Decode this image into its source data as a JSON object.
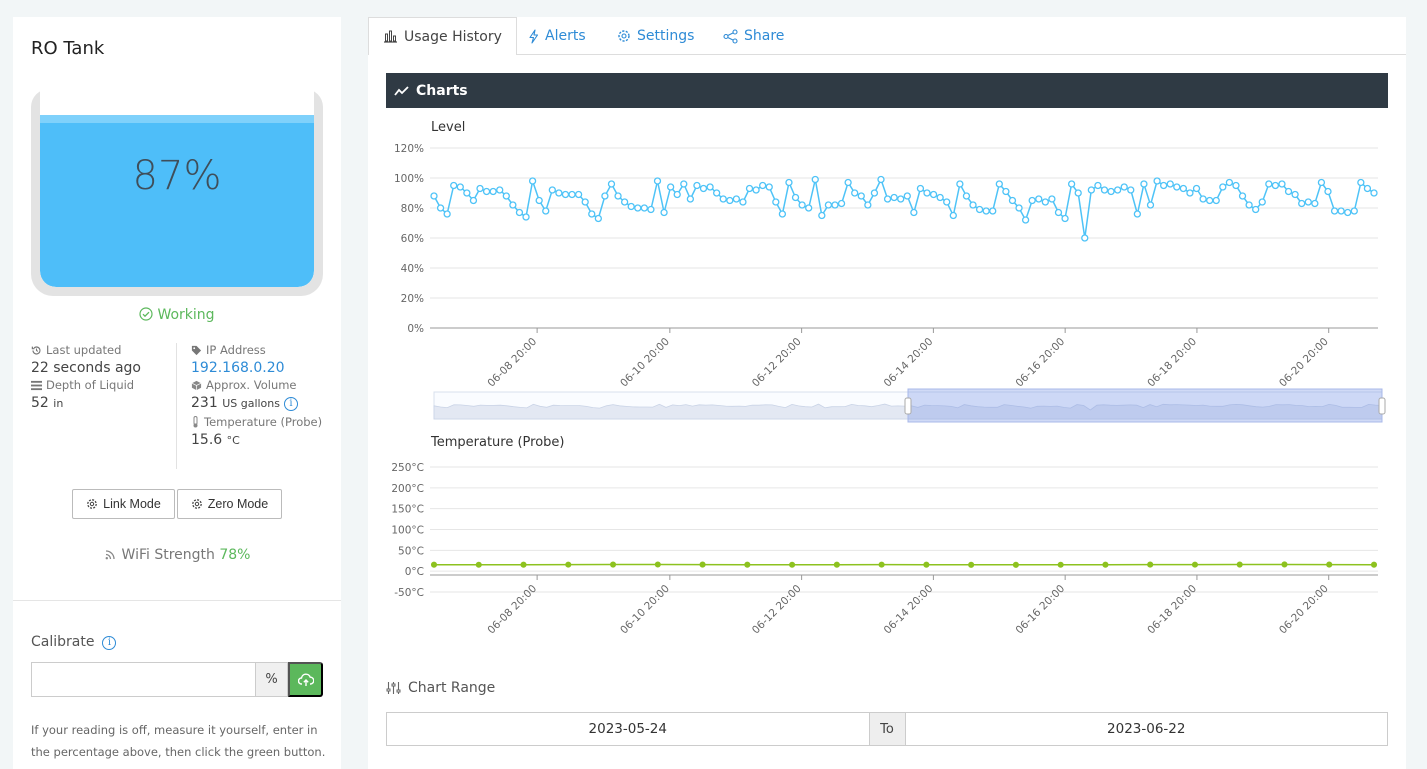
{
  "tank": {
    "title": "RO Tank",
    "level_percent": 87,
    "level_label": "87%",
    "status": "Working",
    "last_updated_label": "Last updated",
    "last_updated_value": "22 seconds ago",
    "depth_label": "Depth of Liquid",
    "depth_value": "52",
    "depth_unit": "in",
    "ip_label": "IP Address",
    "ip_value": "192.168.0.20",
    "volume_label": "Approx. Volume",
    "volume_value": "231",
    "volume_unit": "US gallons",
    "temp_label": "Temperature (Probe)",
    "temp_value": "15.6",
    "temp_unit": "°C",
    "link_mode": "Link Mode",
    "zero_mode": "Zero Mode",
    "wifi_label": "WiFi Strength",
    "wifi_value": "78%"
  },
  "calibrate": {
    "title": "Calibrate",
    "input_value": "",
    "unit": "%",
    "help": "If your reading is off, measure it yourself, enter in the percentage above, then click the green button."
  },
  "tabs": [
    {
      "label": "Usage History",
      "icon": "bar-chart-icon",
      "active": true
    },
    {
      "label": "Alerts",
      "icon": "bolt-icon",
      "active": false
    },
    {
      "label": "Settings",
      "icon": "gear-icon",
      "active": false
    },
    {
      "label": "Share",
      "icon": "share-icon",
      "active": false
    }
  ],
  "charts_header": "Charts",
  "chart_range": {
    "title": "Chart Range",
    "from": "2023-05-24",
    "to_label": "To",
    "to": "2023-06-22"
  },
  "colors": {
    "level_line": "#4ec3f7",
    "temp_line": "#8dc21f",
    "working": "#5cb85c",
    "link": "#2e8bd6"
  },
  "chart_data": [
    {
      "type": "line",
      "title": "Level",
      "ylim": [
        0,
        120
      ],
      "yticks": [
        "0%",
        "20%",
        "40%",
        "60%",
        "80%",
        "100%",
        "120%"
      ],
      "xticks": [
        "06-08 20:00",
        "06-10 20:00",
        "06-12 20:00",
        "06-14 20:00",
        "06-16 20:00",
        "06-18 20:00",
        "06-20 20:00"
      ],
      "series": [
        {
          "values": [
            88,
            80,
            76,
            95,
            94,
            90,
            85,
            93,
            91,
            91,
            92,
            88,
            82,
            77,
            74,
            98,
            85,
            78,
            92,
            90,
            89,
            89,
            89,
            84,
            76,
            73,
            88,
            96,
            88,
            84,
            81,
            80,
            80,
            79,
            98,
            77,
            94,
            89,
            96,
            86,
            95,
            93,
            94,
            90,
            86,
            85,
            86,
            84,
            93,
            92,
            95,
            94,
            84,
            76,
            97,
            87,
            82,
            80,
            99,
            75,
            82,
            82,
            83,
            97,
            90,
            88,
            82,
            90,
            99,
            86,
            87,
            86,
            88,
            77,
            93,
            90,
            89,
            87,
            84,
            75,
            96,
            88,
            82,
            79,
            78,
            78,
            96,
            91,
            85,
            80,
            72,
            85,
            86,
            84,
            86,
            77,
            73,
            96,
            90,
            60,
            92,
            95,
            92,
            91,
            92,
            94,
            92,
            76,
            96,
            82,
            98,
            95,
            96,
            94,
            93,
            90,
            93,
            86,
            85,
            85,
            94,
            97,
            95,
            88,
            82,
            79,
            84,
            96,
            95,
            96,
            91,
            89,
            83,
            84,
            83,
            97,
            91,
            78,
            78,
            77,
            78,
            97,
            93,
            90
          ]
        }
      ]
    },
    {
      "type": "line",
      "title": "Temperature (Probe)",
      "ylim": [
        -50,
        250
      ],
      "yticks": [
        "-50°C",
        "0°C",
        "50°C",
        "100°C",
        "150°C",
        "200°C",
        "250°C"
      ],
      "xticks": [
        "06-08 20:00",
        "06-10 20:00",
        "06-12 20:00",
        "06-14 20:00",
        "06-16 20:00",
        "06-18 20:00",
        "06-20 20:00"
      ],
      "series": [
        {
          "values": [
            15.6,
            15.4,
            15.5,
            15.7,
            15.9,
            16.0,
            15.8,
            15.6,
            15.4,
            15.5,
            15.7,
            15.6,
            15.3,
            15.2,
            15.4,
            15.6,
            15.8,
            15.7,
            15.9,
            16.1,
            15.8,
            15.6
          ]
        }
      ]
    }
  ]
}
